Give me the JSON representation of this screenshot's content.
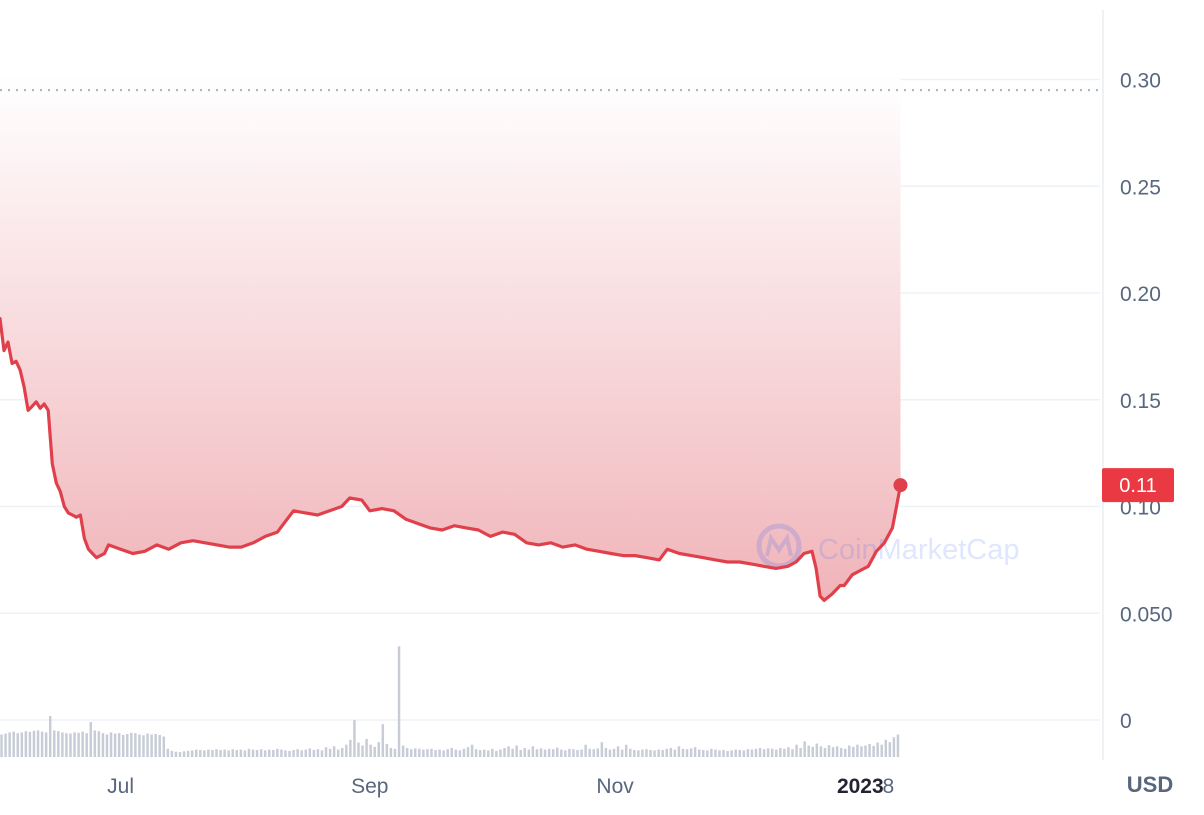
{
  "chart_data": {
    "type": "area",
    "title": "",
    "xlabel": "",
    "ylabel": "",
    "currency_label": "USD",
    "watermark": "CoinMarketCap",
    "current_price_label": "0.11",
    "ylim": [
      0,
      0.33
    ],
    "y_ticks": [
      {
        "value": 0,
        "label": "0"
      },
      {
        "value": 0.05,
        "label": "0.050"
      },
      {
        "value": 0.1,
        "label": "0.10"
      },
      {
        "value": 0.15,
        "label": "0.15"
      },
      {
        "value": 0.2,
        "label": "0.20"
      },
      {
        "value": 0.25,
        "label": "0.25"
      },
      {
        "value": 0.3,
        "label": "0.30"
      }
    ],
    "x_range": [
      "2022-06-01",
      "2023-01-11"
    ],
    "x_ticks": [
      {
        "date": "2022-07-01",
        "label": "Jul",
        "bold": false
      },
      {
        "date": "2022-09-01",
        "label": "Sep",
        "bold": false
      },
      {
        "date": "2022-11-01",
        "label": "Nov",
        "bold": false
      },
      {
        "date": "2023-01-01",
        "label": "2023",
        "bold": true
      },
      {
        "date": "2023-01-08",
        "label": "8",
        "bold": false
      }
    ],
    "reference_line": 0.295,
    "colors": {
      "line": "#e0404b",
      "area_top": "#f0b4b9",
      "grid": "#eff2f5",
      "axis_text": "#58667e",
      "price_badge": "#ea3943",
      "volume": "#c7ccd6"
    },
    "series": [
      {
        "points": [
          [
            "2022-06-01",
            0.188
          ],
          [
            "2022-06-02",
            0.173
          ],
          [
            "2022-06-03",
            0.177
          ],
          [
            "2022-06-04",
            0.167
          ],
          [
            "2022-06-05",
            0.168
          ],
          [
            "2022-06-06",
            0.164
          ],
          [
            "2022-06-07",
            0.156
          ],
          [
            "2022-06-08",
            0.145
          ],
          [
            "2022-06-09",
            0.147
          ],
          [
            "2022-06-10",
            0.149
          ],
          [
            "2022-06-11",
            0.146
          ],
          [
            "2022-06-12",
            0.148
          ],
          [
            "2022-06-13",
            0.145
          ],
          [
            "2022-06-14",
            0.12
          ],
          [
            "2022-06-15",
            0.111
          ],
          [
            "2022-06-16",
            0.107
          ],
          [
            "2022-06-17",
            0.1
          ],
          [
            "2022-06-18",
            0.097
          ],
          [
            "2022-06-19",
            0.096
          ],
          [
            "2022-06-20",
            0.095
          ],
          [
            "2022-06-21",
            0.096
          ],
          [
            "2022-06-22",
            0.085
          ],
          [
            "2022-06-23",
            0.08
          ],
          [
            "2022-06-24",
            0.078
          ],
          [
            "2022-06-25",
            0.076
          ],
          [
            "2022-06-26",
            0.077
          ],
          [
            "2022-06-27",
            0.078
          ],
          [
            "2022-06-28",
            0.082
          ],
          [
            "2022-07-01",
            0.08
          ],
          [
            "2022-07-04",
            0.078
          ],
          [
            "2022-07-07",
            0.079
          ],
          [
            "2022-07-10",
            0.082
          ],
          [
            "2022-07-13",
            0.08
          ],
          [
            "2022-07-16",
            0.083
          ],
          [
            "2022-07-19",
            0.084
          ],
          [
            "2022-07-22",
            0.083
          ],
          [
            "2022-07-25",
            0.082
          ],
          [
            "2022-07-28",
            0.081
          ],
          [
            "2022-07-31",
            0.081
          ],
          [
            "2022-08-03",
            0.083
          ],
          [
            "2022-08-06",
            0.086
          ],
          [
            "2022-08-09",
            0.088
          ],
          [
            "2022-08-11",
            0.093
          ],
          [
            "2022-08-13",
            0.098
          ],
          [
            "2022-08-16",
            0.097
          ],
          [
            "2022-08-19",
            0.096
          ],
          [
            "2022-08-22",
            0.098
          ],
          [
            "2022-08-25",
            0.1
          ],
          [
            "2022-08-27",
            0.104
          ],
          [
            "2022-08-30",
            0.103
          ],
          [
            "2022-09-01",
            0.098
          ],
          [
            "2022-09-04",
            0.099
          ],
          [
            "2022-09-07",
            0.098
          ],
          [
            "2022-09-10",
            0.094
          ],
          [
            "2022-09-13",
            0.092
          ],
          [
            "2022-09-16",
            0.09
          ],
          [
            "2022-09-19",
            0.089
          ],
          [
            "2022-09-22",
            0.091
          ],
          [
            "2022-09-25",
            0.09
          ],
          [
            "2022-09-28",
            0.089
          ],
          [
            "2022-10-01",
            0.086
          ],
          [
            "2022-10-04",
            0.088
          ],
          [
            "2022-10-07",
            0.087
          ],
          [
            "2022-10-10",
            0.083
          ],
          [
            "2022-10-13",
            0.082
          ],
          [
            "2022-10-16",
            0.083
          ],
          [
            "2022-10-19",
            0.081
          ],
          [
            "2022-10-22",
            0.082
          ],
          [
            "2022-10-25",
            0.08
          ],
          [
            "2022-10-28",
            0.079
          ],
          [
            "2022-10-31",
            0.078
          ],
          [
            "2022-11-03",
            0.077
          ],
          [
            "2022-11-06",
            0.077
          ],
          [
            "2022-11-09",
            0.076
          ],
          [
            "2022-11-12",
            0.075
          ],
          [
            "2022-11-14",
            0.08
          ],
          [
            "2022-11-17",
            0.078
          ],
          [
            "2022-11-20",
            0.077
          ],
          [
            "2022-11-23",
            0.076
          ],
          [
            "2022-11-26",
            0.075
          ],
          [
            "2022-11-29",
            0.074
          ],
          [
            "2022-12-02",
            0.074
          ],
          [
            "2022-12-05",
            0.073
          ],
          [
            "2022-12-08",
            0.072
          ],
          [
            "2022-12-11",
            0.071
          ],
          [
            "2022-12-14",
            0.072
          ],
          [
            "2022-12-16",
            0.074
          ],
          [
            "2022-12-18",
            0.078
          ],
          [
            "2022-12-20",
            0.079
          ],
          [
            "2022-12-21",
            0.071
          ],
          [
            "2022-12-22",
            0.058
          ],
          [
            "2022-12-23",
            0.056
          ],
          [
            "2022-12-25",
            0.059
          ],
          [
            "2022-12-27",
            0.063
          ],
          [
            "2022-12-28",
            0.063
          ],
          [
            "2022-12-30",
            0.068
          ],
          [
            "2023-01-01",
            0.07
          ],
          [
            "2023-01-03",
            0.072
          ],
          [
            "2023-01-05",
            0.079
          ],
          [
            "2023-01-07",
            0.083
          ],
          [
            "2023-01-09",
            0.09
          ],
          [
            "2023-01-10",
            0.1
          ],
          [
            "2023-01-11",
            0.11
          ]
        ]
      }
    ],
    "volume": [
      0.55,
      0.57,
      0.6,
      0.62,
      0.58,
      0.6,
      0.63,
      0.61,
      0.64,
      0.65,
      0.62,
      0.6,
      1.0,
      0.65,
      0.63,
      0.6,
      0.58,
      0.57,
      0.6,
      0.59,
      0.62,
      0.58,
      0.85,
      0.65,
      0.63,
      0.58,
      0.55,
      0.6,
      0.57,
      0.58,
      0.54,
      0.56,
      0.59,
      0.58,
      0.55,
      0.53,
      0.57,
      0.55,
      0.56,
      0.54,
      0.5,
      0.2,
      0.15,
      0.13,
      0.12,
      0.14,
      0.15,
      0.16,
      0.18,
      0.17,
      0.16,
      0.18,
      0.17,
      0.19,
      0.17,
      0.18,
      0.16,
      0.19,
      0.17,
      0.18,
      0.16,
      0.2,
      0.18,
      0.17,
      0.19,
      0.16,
      0.18,
      0.17,
      0.2,
      0.18,
      0.16,
      0.15,
      0.17,
      0.19,
      0.16,
      0.18,
      0.21,
      0.17,
      0.19,
      0.16,
      0.24,
      0.2,
      0.26,
      0.18,
      0.22,
      0.3,
      0.42,
      0.9,
      0.35,
      0.28,
      0.44,
      0.3,
      0.25,
      0.36,
      0.8,
      0.32,
      0.22,
      0.2,
      2.7,
      0.28,
      0.22,
      0.19,
      0.21,
      0.2,
      0.18,
      0.19,
      0.2,
      0.17,
      0.18,
      0.16,
      0.19,
      0.22,
      0.18,
      0.16,
      0.2,
      0.24,
      0.3,
      0.19,
      0.17,
      0.18,
      0.16,
      0.2,
      0.15,
      0.18,
      0.22,
      0.26,
      0.2,
      0.28,
      0.17,
      0.22,
      0.18,
      0.26,
      0.19,
      0.21,
      0.18,
      0.2,
      0.19,
      0.23,
      0.18,
      0.16,
      0.2,
      0.19,
      0.17,
      0.18,
      0.3,
      0.2,
      0.19,
      0.21,
      0.36,
      0.22,
      0.18,
      0.2,
      0.26,
      0.18,
      0.3,
      0.2,
      0.17,
      0.16,
      0.18,
      0.19,
      0.17,
      0.16,
      0.18,
      0.17,
      0.2,
      0.22,
      0.18,
      0.26,
      0.2,
      0.19,
      0.21,
      0.24,
      0.18,
      0.17,
      0.16,
      0.2,
      0.18,
      0.16,
      0.17,
      0.15,
      0.16,
      0.18,
      0.17,
      0.16,
      0.19,
      0.18,
      0.2,
      0.22,
      0.19,
      0.21,
      0.2,
      0.18,
      0.22,
      0.2,
      0.24,
      0.19,
      0.3,
      0.22,
      0.38,
      0.28,
      0.25,
      0.33,
      0.26,
      0.22,
      0.29,
      0.24,
      0.26,
      0.22,
      0.2,
      0.28,
      0.25,
      0.3,
      0.26,
      0.28,
      0.32,
      0.27,
      0.35,
      0.3,
      0.42,
      0.36,
      0.48,
      0.55
    ]
  }
}
